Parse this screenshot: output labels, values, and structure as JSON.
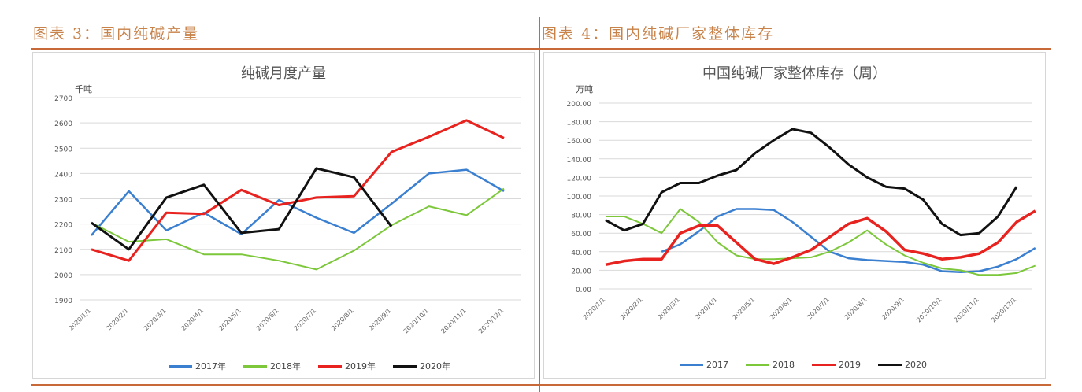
{
  "left_panel": {
    "figure_title": "图表 3：国内纯碱产量",
    "chart_title": "纯碱月度产量",
    "unit": "千吨",
    "legend": [
      "2017年",
      "2018年",
      "2019年",
      "2020年"
    ]
  },
  "right_panel": {
    "figure_title": "图表 4：国内纯碱厂家整体库存",
    "chart_title": "中国纯碱厂家整体库存（周）",
    "unit": "万吨",
    "legend": [
      "2017",
      "2018",
      "2019",
      "2020"
    ]
  },
  "colors": {
    "2017": "#3a7fd0",
    "2018": "#7cc73a",
    "2019": "#e8231f",
    "2020": "#111111",
    "accent": "#c8693a"
  },
  "chart_data": [
    {
      "type": "line",
      "title": "纯碱月度产量",
      "xlabel": "",
      "ylabel": "千吨",
      "ylim": [
        1900,
        2700
      ],
      "yticks": [
        1900,
        2000,
        2100,
        2200,
        2300,
        2400,
        2500,
        2600,
        2700
      ],
      "grid": true,
      "legend_position": "bottom",
      "categories": [
        "2020/1/1",
        "2020/2/1",
        "2020/3/1",
        "2020/4/1",
        "2020/5/1",
        "2020/6/1",
        "2020/7/1",
        "2020/8/1",
        "2020/9/1",
        "2020/10/1",
        "2020/11/1",
        "2020/12/1"
      ],
      "series": [
        {
          "name": "2017年",
          "values": [
            2155,
            2330,
            2175,
            2245,
            2160,
            2295,
            2225,
            2165,
            2280,
            2400,
            2415,
            2330
          ]
        },
        {
          "name": "2018年",
          "values": [
            2205,
            2130,
            2140,
            2080,
            2080,
            2055,
            2020,
            2095,
            2195,
            2270,
            2235,
            2340
          ]
        },
        {
          "name": "2019年",
          "values": [
            2100,
            2055,
            2245,
            2240,
            2335,
            2275,
            2305,
            2310,
            2485,
            2545,
            2610,
            2540
          ]
        },
        {
          "name": "2020年",
          "values": [
            2205,
            2100,
            2305,
            2355,
            2165,
            2180,
            2420,
            2385,
            2190,
            null,
            null,
            null
          ]
        }
      ]
    },
    {
      "type": "line",
      "title": "中国纯碱厂家整体库存（周）",
      "xlabel": "",
      "ylabel": "万吨",
      "ylim": [
        0,
        200
      ],
      "yticks": [
        "0.00",
        "20.00",
        "40.00",
        "60.00",
        "80.00",
        "100.00",
        "120.00",
        "140.00",
        "160.00",
        "180.00",
        "200.00"
      ],
      "grid": true,
      "legend_position": "bottom",
      "categories": [
        "2020/1/1",
        "2020/2/1",
        "2020/3/1",
        "2020/4/1",
        "2020/5/1",
        "2020/6/1",
        "2020/7/1",
        "2020/8/1",
        "2020/9/1",
        "2020/10/1",
        "2020/11/1",
        "2020/12/1"
      ],
      "x": [
        0,
        0.5,
        1,
        1.5,
        2,
        2.5,
        3,
        3.5,
        4,
        4.5,
        5,
        5.5,
        6,
        6.5,
        7,
        7.5,
        8,
        8.5,
        9,
        9.5,
        10,
        10.5,
        11,
        11.5
      ],
      "series": [
        {
          "name": "2017",
          "values": [
            null,
            null,
            null,
            40,
            48,
            62,
            78,
            86,
            86,
            85,
            72,
            56,
            40,
            33,
            31,
            30,
            29,
            26,
            19,
            18,
            19,
            24,
            32,
            44
          ]
        },
        {
          "name": "2018",
          "values": [
            78,
            78,
            70,
            60,
            86,
            72,
            50,
            36,
            32,
            32,
            33,
            34,
            40,
            50,
            63,
            48,
            36,
            28,
            22,
            20,
            15,
            15,
            17,
            25
          ]
        },
        {
          "name": "2019",
          "values": [
            26,
            30,
            32,
            32,
            60,
            68,
            68,
            50,
            32,
            27,
            34,
            42,
            56,
            70,
            76,
            62,
            42,
            38,
            32,
            34,
            38,
            50,
            72,
            84
          ]
        },
        {
          "name": "2020",
          "values": [
            74,
            63,
            70,
            104,
            114,
            114,
            122,
            128,
            146,
            160,
            172,
            168,
            152,
            134,
            120,
            110,
            108,
            96,
            70,
            58,
            60,
            78,
            110,
            null
          ]
        }
      ]
    }
  ]
}
